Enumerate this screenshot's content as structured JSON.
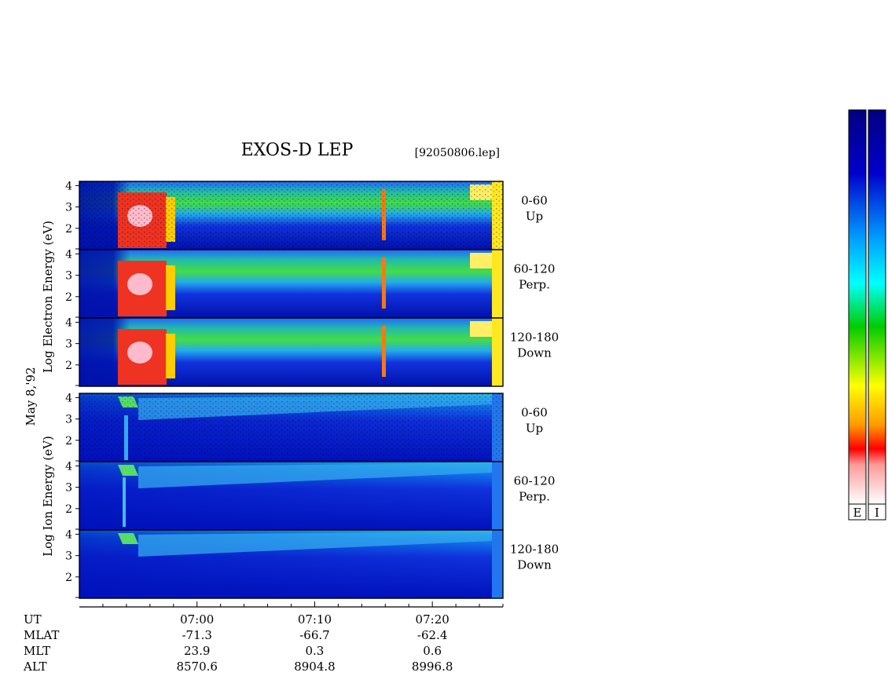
{
  "title": "EXOS-D LEP",
  "file_label": "[92050806.lep]",
  "date_label": "May  8,'92",
  "electron_ylabel": "Log  Electron  Energy (eV)",
  "ion_ylabel": "Log  Ion  Energy (eV)",
  "colorbar_labels": [
    "E",
    "I"
  ],
  "colorbar_colors": [
    "#ffffff",
    "#ff0000",
    "#ff9900",
    "#ffff00",
    "#00cc00",
    "#00ffff",
    "#0099ff",
    "#0000cc",
    "#000080"
  ],
  "chart_data": {
    "type": "heatmap",
    "x_range": [
      "06:50",
      "07:26"
    ],
    "y_range": [
      1,
      4.2
    ],
    "panels": [
      {
        "group": "electron",
        "pitch": "0-60",
        "dir": "Up",
        "yticks": [
          "4",
          "3",
          "2"
        ]
      },
      {
        "group": "electron",
        "pitch": "60-120",
        "dir": "Perp.",
        "yticks": [
          "4",
          "3",
          "2"
        ]
      },
      {
        "group": "electron",
        "pitch": "120-180",
        "dir": "Down",
        "yticks": [
          "4",
          "3",
          "2"
        ]
      },
      {
        "group": "ion",
        "pitch": "0-60",
        "dir": "Up",
        "yticks": [
          "4",
          "3",
          "2"
        ]
      },
      {
        "group": "ion",
        "pitch": "60-120",
        "dir": "Perp.",
        "yticks": [
          "4",
          "3",
          "2"
        ]
      },
      {
        "group": "ion",
        "pitch": "120-180",
        "dir": "Down",
        "yticks": [
          "4",
          "3",
          "2"
        ]
      }
    ],
    "time_ticks": [
      {
        "UT": "07:00",
        "MLAT": "-71.3",
        "MLT": "23.9",
        "ALT": "8570.6"
      },
      {
        "UT": "07:10",
        "MLAT": "-66.7",
        "MLT": "0.3",
        "ALT": "8904.8"
      },
      {
        "UT": "07:20",
        "MLAT": "-62.4",
        "MLT": "0.6",
        "ALT": "8996.8"
      }
    ],
    "row_labels": [
      "UT",
      "MLAT",
      "MLT",
      "ALT"
    ]
  }
}
